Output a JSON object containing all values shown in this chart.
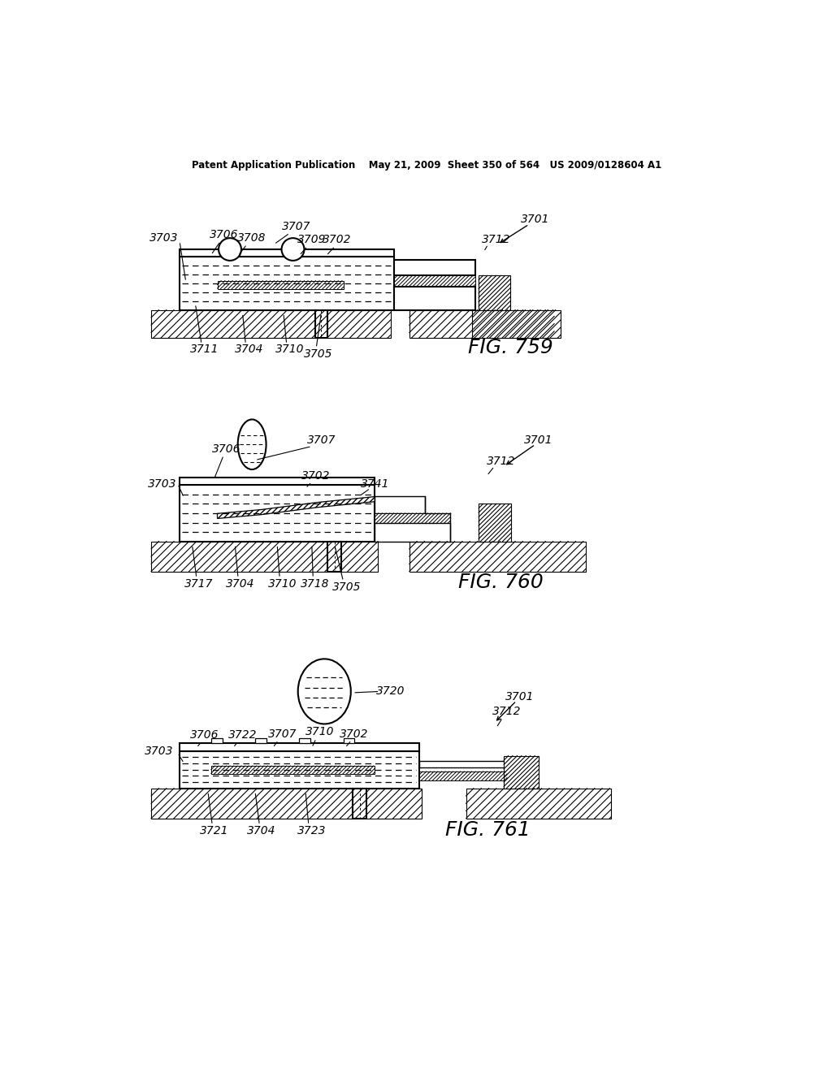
{
  "header": "Patent Application Publication    May 21, 2009  Sheet 350 of 564   US 2009/0128604 A1",
  "fig_labels": [
    "FIG. 759",
    "FIG. 760",
    "FIG. 761"
  ],
  "bg": "#ffffff",
  "lc": "#000000"
}
